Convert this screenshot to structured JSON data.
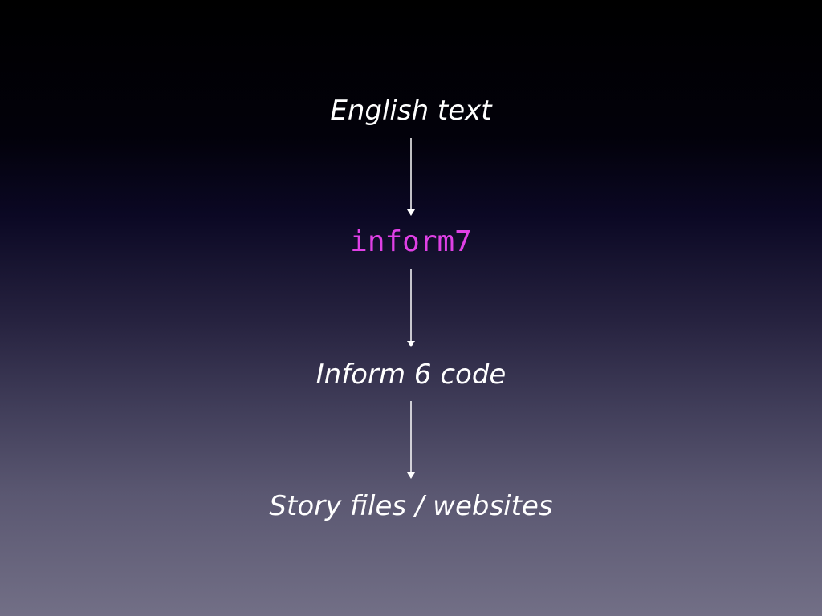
{
  "diagram": {
    "nodes": [
      {
        "label": "English text"
      },
      {
        "label": "inform7"
      },
      {
        "label": "Inform 6 code"
      },
      {
        "label": "Story files / websites"
      }
    ],
    "colors": {
      "text": "#ffffff",
      "code_text": "#e040e6",
      "arrow": "#ffffff"
    }
  }
}
